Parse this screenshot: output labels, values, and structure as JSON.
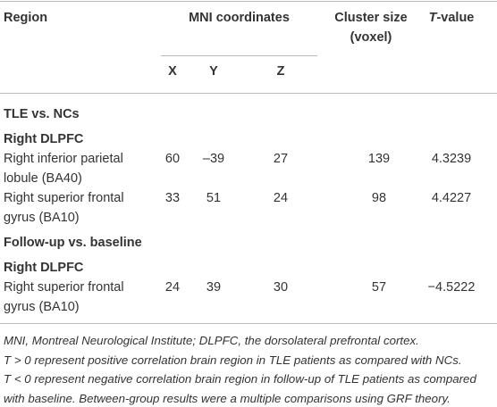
{
  "table": {
    "header": {
      "region": "Region",
      "mni": "MNI coordinates",
      "cluster": "Cluster size (voxel)",
      "t": "T-value",
      "x": "X",
      "y": "Y",
      "z": "Z"
    },
    "groups": [
      {
        "label": "TLE vs. NCs",
        "subgroup": "Right DLPFC",
        "rows": [
          [
            "Right inferior parietal lobule (BA40)",
            "60",
            "–39",
            "27",
            "139",
            "4.3239"
          ],
          [
            "Right superior frontal gyrus (BA10)",
            "33",
            "51",
            "24",
            "98",
            "4.4227"
          ]
        ]
      },
      {
        "label": "Follow-up vs. baseline",
        "subgroup": "Right DLPFC",
        "rows": [
          [
            "Right superior frontal gyrus (BA10)",
            "24",
            "39",
            "30",
            "57",
            "−4.5222"
          ]
        ]
      }
    ]
  },
  "footnote": [
    "MNI, Montreal Neurological Institute; DLPFC, the dorsolateral prefrontal cortex.",
    "T > 0 represent positive correlation brain region in TLE patients as compared with NCs.",
    "T < 0 represent negative correlation brain region in follow-up of TLE patients as compared",
    "with baseline. Between-group results were a multiple comparisons using GRF theory."
  ]
}
